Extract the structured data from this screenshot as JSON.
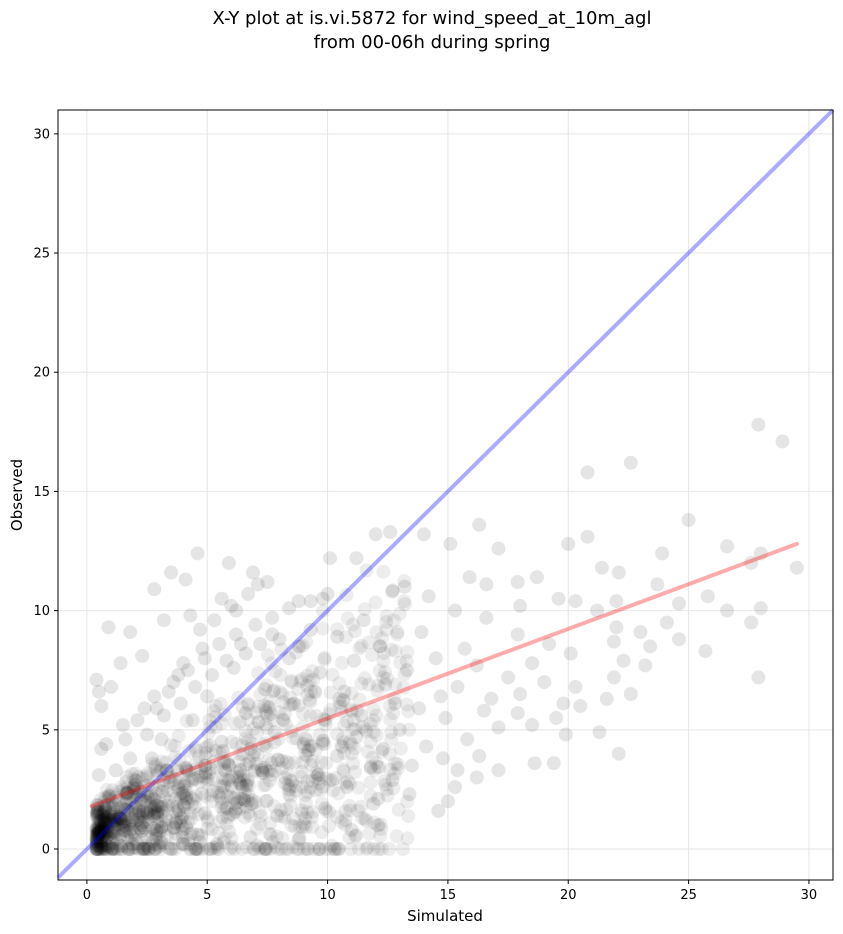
{
  "chart_data": {
    "type": "scatter",
    "title_lines": [
      "X-Y plot at is.vi.5872 for wind_speed_at_10m_agl",
      "from 00-06h during spring"
    ],
    "xlabel": "Simulated",
    "ylabel": "Observed",
    "xlim": [
      -1.2,
      31
    ],
    "ylim": [
      -1.3,
      31
    ],
    "xticks": [
      0,
      5,
      10,
      15,
      20,
      25,
      30
    ],
    "yticks": [
      0,
      5,
      10,
      15,
      20,
      25,
      30
    ],
    "grid": true,
    "colors": {
      "points": "#000000",
      "one_to_one": "#0000ff",
      "fit": "#ff0000"
    },
    "one_to_one_line": {
      "x": [
        -1.2,
        31
      ],
      "y": [
        -1.2,
        31
      ]
    },
    "fit_line": {
      "x": [
        0.2,
        29.5
      ],
      "y": [
        1.8,
        12.8
      ]
    },
    "points": [
      [
        27.9,
        17.8
      ],
      [
        28.9,
        17.1
      ],
      [
        22.6,
        16.2
      ],
      [
        20.8,
        15.8
      ],
      [
        25.0,
        13.8
      ],
      [
        16.3,
        13.6
      ],
      [
        12.6,
        13.3
      ],
      [
        14.0,
        13.2
      ],
      [
        12.0,
        13.2
      ],
      [
        15.1,
        12.8
      ],
      [
        20.0,
        12.8
      ],
      [
        20.8,
        13.1
      ],
      [
        26.6,
        12.7
      ],
      [
        17.1,
        12.6
      ],
      [
        23.9,
        12.4
      ],
      [
        28.0,
        12.4
      ],
      [
        4.6,
        12.4
      ],
      [
        10.1,
        12.2
      ],
      [
        11.2,
        12.2
      ],
      [
        5.9,
        12.0
      ],
      [
        27.6,
        12.0
      ],
      [
        21.4,
        11.8
      ],
      [
        29.5,
        11.8
      ],
      [
        22.1,
        11.6
      ],
      [
        6.9,
        11.6
      ],
      [
        3.5,
        11.6
      ],
      [
        15.9,
        11.4
      ],
      [
        18.7,
        11.4
      ],
      [
        4.1,
        11.3
      ],
      [
        16.6,
        11.1
      ],
      [
        17.9,
        11.2
      ],
      [
        7.1,
        11.1
      ],
      [
        23.7,
        11.1
      ],
      [
        13.2,
        11.0
      ],
      [
        2.8,
        10.9
      ],
      [
        12.7,
        10.8
      ],
      [
        10.0,
        10.7
      ],
      [
        14.2,
        10.6
      ],
      [
        22.0,
        10.4
      ],
      [
        19.6,
        10.5
      ],
      [
        25.8,
        10.6
      ],
      [
        9.8,
        10.5
      ],
      [
        5.6,
        10.5
      ],
      [
        8.8,
        10.4
      ],
      [
        24.6,
        10.3
      ],
      [
        20.3,
        10.4
      ],
      [
        18.0,
        10.2
      ],
      [
        28.0,
        10.1
      ],
      [
        26.6,
        10.0
      ],
      [
        15.3,
        10.0
      ],
      [
        21.2,
        10.0
      ],
      [
        6.2,
        10.0
      ],
      [
        4.3,
        9.8
      ],
      [
        16.6,
        9.7
      ],
      [
        11.5,
        9.6
      ],
      [
        24.1,
        9.5
      ],
      [
        27.6,
        9.5
      ],
      [
        3.2,
        9.6
      ],
      [
        1.8,
        9.1
      ],
      [
        0.9,
        9.3
      ],
      [
        22.0,
        9.3
      ],
      [
        9.3,
        9.2
      ],
      [
        13.9,
        9.1
      ],
      [
        23.0,
        9.1
      ],
      [
        7.7,
        9.0
      ],
      [
        17.9,
        9.0
      ],
      [
        10.4,
        8.9
      ],
      [
        21.9,
        8.7
      ],
      [
        24.6,
        8.8
      ],
      [
        19.2,
        8.6
      ],
      [
        6.4,
        8.6
      ],
      [
        12.2,
        8.5
      ],
      [
        15.7,
        8.4
      ],
      [
        4.8,
        8.4
      ],
      [
        23.4,
        8.5
      ],
      [
        20.1,
        8.2
      ],
      [
        25.7,
        8.3
      ],
      [
        14.5,
        8.0
      ],
      [
        2.3,
        8.1
      ],
      [
        8.4,
        8.0
      ],
      [
        22.3,
        7.9
      ],
      [
        11.1,
        7.9
      ],
      [
        18.5,
        7.8
      ],
      [
        1.4,
        7.8
      ],
      [
        16.2,
        7.7
      ],
      [
        6.1,
        7.6
      ],
      [
        23.2,
        7.7
      ],
      [
        13.3,
        7.5
      ],
      [
        9.7,
        7.4
      ],
      [
        21.9,
        7.2
      ],
      [
        27.9,
        7.2
      ],
      [
        3.8,
        7.3
      ],
      [
        17.5,
        7.2
      ],
      [
        0.4,
        7.1
      ],
      [
        19.0,
        7.0
      ],
      [
        12.4,
        6.9
      ],
      [
        15.4,
        6.8
      ],
      [
        7.4,
        6.7
      ],
      [
        20.3,
        6.8
      ],
      [
        1.0,
        6.8
      ],
      [
        0.5,
        6.6
      ],
      [
        10.7,
        6.6
      ],
      [
        14.7,
        6.4
      ],
      [
        18.0,
        6.5
      ],
      [
        22.6,
        6.5
      ],
      [
        5.0,
        6.4
      ],
      [
        16.8,
        6.3
      ],
      [
        21.6,
        6.3
      ],
      [
        19.8,
        6.1
      ],
      [
        8.6,
        6.1
      ],
      [
        0.6,
        6.0
      ],
      [
        12.8,
        6.1
      ],
      [
        13.8,
        5.9
      ],
      [
        20.5,
        6.0
      ],
      [
        2.4,
        5.9
      ],
      [
        17.9,
        5.7
      ],
      [
        16.5,
        5.8
      ],
      [
        6.6,
        5.7
      ],
      [
        11.4,
        5.6
      ],
      [
        19.5,
        5.5
      ],
      [
        14.9,
        5.5
      ],
      [
        9.9,
        5.4
      ],
      [
        4.4,
        5.4
      ],
      [
        18.5,
        5.2
      ],
      [
        17.1,
        5.1
      ],
      [
        1.5,
        5.2
      ],
      [
        13.0,
        5.0
      ],
      [
        7.8,
        4.9
      ],
      [
        21.3,
        4.9
      ],
      [
        19.9,
        4.8
      ],
      [
        11.2,
        4.7
      ],
      [
        15.8,
        4.6
      ],
      [
        3.1,
        4.6
      ],
      [
        5.6,
        4.5
      ],
      [
        9.0,
        4.4
      ],
      [
        0.8,
        4.4
      ],
      [
        14.1,
        4.3
      ],
      [
        12.3,
        4.2
      ],
      [
        6.8,
        4.2
      ],
      [
        0.6,
        4.2
      ],
      [
        22.1,
        4.0
      ],
      [
        16.3,
        3.9
      ],
      [
        10.4,
        3.9
      ],
      [
        2.7,
        3.8
      ],
      [
        14.8,
        3.8
      ],
      [
        8.1,
        3.7
      ],
      [
        18.6,
        3.6
      ],
      [
        19.4,
        3.6
      ],
      [
        13.5,
        3.5
      ],
      [
        4.9,
        3.5
      ],
      [
        11.8,
        3.4
      ],
      [
        17.1,
        3.3
      ],
      [
        1.2,
        3.3
      ],
      [
        15.4,
        3.3
      ],
      [
        7.3,
        3.2
      ],
      [
        9.6,
        3.1
      ],
      [
        16.2,
        3.0
      ],
      [
        3.4,
        3.0
      ],
      [
        12.7,
        2.9
      ],
      [
        5.9,
        2.9
      ],
      [
        0.5,
        3.1
      ],
      [
        15.3,
        2.6
      ],
      [
        10.8,
        2.6
      ],
      [
        8.4,
        2.5
      ],
      [
        13.4,
        2.3
      ],
      [
        2.2,
        2.4
      ],
      [
        12.1,
        2.1
      ],
      [
        15.0,
        2.0
      ],
      [
        6.4,
        2.1
      ],
      [
        11.9,
        1.9
      ],
      [
        9.9,
        1.7
      ],
      [
        14.6,
        1.6
      ],
      [
        1.7,
        1.6
      ],
      [
        4.9,
        1.5
      ],
      [
        7.9,
        1.4
      ],
      [
        12.1,
        1.0
      ],
      [
        11.0,
        0.8
      ],
      [
        3.1,
        0.9
      ],
      [
        2.0,
        0.6
      ],
      [
        7.4,
        0.0
      ],
      [
        3.0,
        0.1
      ],
      [
        1.9,
        0.2
      ],
      [
        4.7,
        0.3
      ],
      [
        1.2,
        0.4
      ],
      [
        5.4,
        0.2
      ],
      [
        8.8,
        0.4
      ],
      [
        6.8,
        0.5
      ],
      [
        0.9,
        0.1
      ],
      [
        2.6,
        0.0
      ],
      [
        4.0,
        0.2
      ],
      [
        1.8,
        3.8
      ],
      [
        2.5,
        4.8
      ],
      [
        3.2,
        5.6
      ],
      [
        3.9,
        6.1
      ],
      [
        4.5,
        6.8
      ],
      [
        5.2,
        7.3
      ],
      [
        5.8,
        7.9
      ],
      [
        6.6,
        8.2
      ],
      [
        7.2,
        8.6
      ],
      [
        8.0,
        8.8
      ],
      [
        2.8,
        6.4
      ],
      [
        3.6,
        7.0
      ],
      [
        4.2,
        7.5
      ],
      [
        4.9,
        8.0
      ],
      [
        5.5,
        8.6
      ],
      [
        6.2,
        9.0
      ],
      [
        7.0,
        9.4
      ],
      [
        7.7,
        9.7
      ],
      [
        8.4,
        10.1
      ],
      [
        9.3,
        10.4
      ],
      [
        1.6,
        4.6
      ],
      [
        2.1,
        5.4
      ],
      [
        2.9,
        5.9
      ],
      [
        3.4,
        6.6
      ],
      [
        4.0,
        7.8
      ],
      [
        4.7,
        9.2
      ],
      [
        5.3,
        9.6
      ],
      [
        6.0,
        10.2
      ],
      [
        6.7,
        10.7
      ],
      [
        7.5,
        11.2
      ]
    ]
  }
}
